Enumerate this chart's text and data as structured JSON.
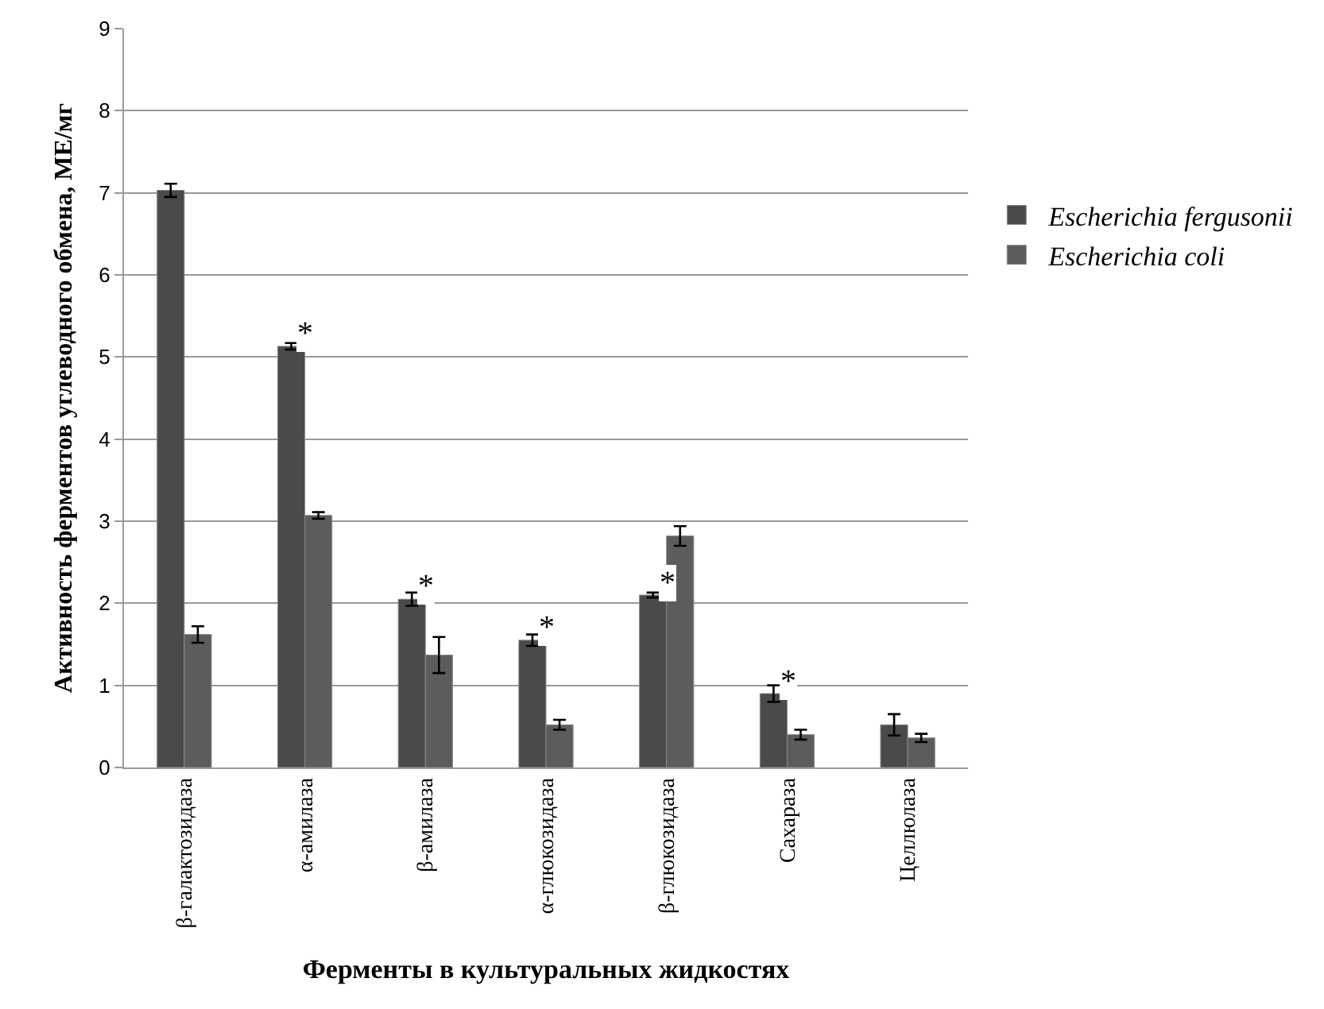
{
  "chart_data": {
    "type": "bar",
    "xlabel": "Ферменты в культуральных жидкостях",
    "ylabel": "Активность ферментов углеводного обмена, МЕ/мг",
    "categories": [
      "β-галактозидаза",
      "α-амилаза",
      "β-амилаза",
      "α-глюкозидаза",
      "β-глюкозидаза",
      "Сахараза",
      "Целлюлаза"
    ],
    "series": [
      {
        "name": "Escherichia fergusonii",
        "color": "#4a4a4a",
        "values": [
          7.03,
          5.13,
          2.05,
          1.55,
          2.1,
          0.9,
          0.52
        ],
        "errors": [
          0.08,
          0.04,
          0.08,
          0.07,
          0.03,
          0.1,
          0.13
        ]
      },
      {
        "name": "Escherichia coli",
        "color": "#5c5c5c",
        "values": [
          1.62,
          3.07,
          1.37,
          0.52,
          2.82,
          0.4,
          0.36
        ],
        "errors": [
          0.1,
          0.04,
          0.22,
          0.06,
          0.12,
          0.06,
          0.05
        ]
      }
    ],
    "ylim": [
      0,
      9
    ],
    "yticks": [
      0,
      1,
      2,
      3,
      4,
      5,
      6,
      7,
      8,
      9
    ],
    "grid": "y",
    "legend": "right",
    "annotations": [
      {
        "text": "*",
        "x": "α-амилаза",
        "y": 5.13
      },
      {
        "text": "*",
        "x": "β-амилаза",
        "y": 2.05
      },
      {
        "text": "*",
        "x": "α-глюкозидаза",
        "y": 1.55
      },
      {
        "text": "*",
        "x": "β-глюкозидаза",
        "y": 2.1
      },
      {
        "text": "*",
        "x": "Сахараза",
        "y": 0.9
      }
    ]
  }
}
